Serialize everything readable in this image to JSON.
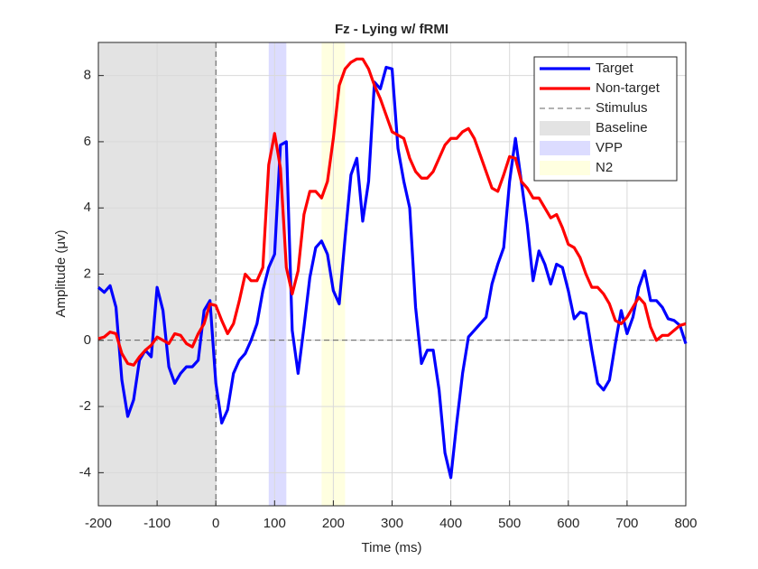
{
  "chart_data": {
    "type": "line",
    "title": "Fz - Lying w/ fRMI",
    "x_label": "Time (ms)",
    "y_label": "Amplitude (μv)",
    "xlim": [
      -200,
      800
    ],
    "ylim": [
      -5,
      9
    ],
    "xticks": [
      -200,
      -100,
      0,
      100,
      200,
      300,
      400,
      500,
      600,
      700,
      800
    ],
    "yticks": [
      -4,
      -2,
      0,
      2,
      4,
      6,
      8
    ],
    "grid": true,
    "legend": "upper right",
    "x": [
      -200,
      -190,
      -180,
      -170,
      -160,
      -150,
      -140,
      -130,
      -120,
      -110,
      -100,
      -90,
      -80,
      -70,
      -60,
      -50,
      -40,
      -30,
      -20,
      -10,
      0,
      10,
      20,
      30,
      40,
      50,
      60,
      70,
      80,
      90,
      100,
      110,
      120,
      130,
      140,
      150,
      160,
      170,
      180,
      190,
      200,
      210,
      220,
      230,
      240,
      250,
      260,
      270,
      280,
      290,
      300,
      310,
      320,
      330,
      340,
      350,
      360,
      370,
      380,
      390,
      400,
      410,
      420,
      430,
      440,
      450,
      460,
      470,
      480,
      490,
      500,
      510,
      520,
      530,
      540,
      550,
      560,
      570,
      580,
      590,
      600,
      610,
      620,
      630,
      640,
      650,
      660,
      670,
      680,
      690,
      700,
      710,
      720,
      730,
      740,
      750,
      760,
      770,
      780,
      790,
      800
    ],
    "series": [
      {
        "name": "Target",
        "color": "#0000ff",
        "values": [
          1.6,
          1.45,
          1.65,
          1.0,
          -1.2,
          -2.3,
          -1.8,
          -0.6,
          -0.3,
          -0.5,
          1.6,
          0.9,
          -0.8,
          -1.3,
          -1.0,
          -0.8,
          -0.8,
          -0.6,
          0.9,
          1.2,
          -1.3,
          -2.5,
          -2.1,
          -1.0,
          -0.6,
          -0.4,
          0.0,
          0.5,
          1.5,
          2.2,
          2.6,
          5.9,
          6.0,
          0.3,
          -1.0,
          0.4,
          1.9,
          2.8,
          3.0,
          2.6,
          1.5,
          1.1,
          3.1,
          5.0,
          5.5,
          3.6,
          4.8,
          7.8,
          7.6,
          8.25,
          8.2,
          5.8,
          4.8,
          4.0,
          1.0,
          -0.7,
          -0.3,
          -0.3,
          -1.5,
          -3.4,
          -4.15,
          -2.5,
          -1.0,
          0.1,
          0.3,
          0.5,
          0.7,
          1.7,
          2.3,
          2.8,
          4.8,
          6.1,
          4.8,
          3.5,
          1.8,
          2.7,
          2.3,
          1.7,
          2.3,
          2.2,
          1.5,
          0.65,
          0.85,
          0.8,
          -0.3,
          -1.3,
          -1.5,
          -1.2,
          -0.1,
          0.9,
          0.2,
          0.7,
          1.6,
          2.1,
          1.2,
          1.2,
          1.0,
          0.65,
          0.6,
          0.45,
          -0.1
        ]
      },
      {
        "name": "Non-target",
        "color": "#ff0000",
        "values": [
          0.05,
          0.1,
          0.25,
          0.2,
          -0.4,
          -0.7,
          -0.75,
          -0.5,
          -0.3,
          -0.15,
          0.1,
          0.0,
          -0.1,
          0.2,
          0.15,
          -0.1,
          -0.2,
          0.2,
          0.5,
          1.1,
          1.05,
          0.6,
          0.2,
          0.5,
          1.2,
          2.0,
          1.8,
          1.8,
          2.2,
          5.3,
          6.25,
          5.2,
          2.2,
          1.4,
          2.1,
          3.8,
          4.5,
          4.5,
          4.3,
          4.8,
          6.1,
          7.7,
          8.2,
          8.4,
          8.5,
          8.5,
          8.2,
          7.7,
          7.3,
          6.8,
          6.3,
          6.2,
          6.1,
          5.5,
          5.1,
          4.9,
          4.9,
          5.1,
          5.5,
          5.9,
          6.1,
          6.1,
          6.3,
          6.4,
          6.1,
          5.6,
          5.1,
          4.6,
          4.5,
          5.0,
          5.55,
          5.5,
          4.8,
          4.6,
          4.3,
          4.3,
          4.0,
          3.7,
          3.8,
          3.4,
          2.9,
          2.8,
          2.5,
          2.0,
          1.6,
          1.6,
          1.4,
          1.1,
          0.6,
          0.5,
          0.7,
          1.0,
          1.3,
          1.1,
          0.4,
          0.0,
          0.15,
          0.15,
          0.3,
          0.45,
          0.5
        ]
      }
    ],
    "stimulus": {
      "name": "Stimulus",
      "x": 0,
      "color": "#333333"
    },
    "reference_y": 0,
    "regions": [
      {
        "name": "Baseline",
        "start": -200,
        "end": 0,
        "color": "#e3e3e3"
      },
      {
        "name": "VPP",
        "start": 90,
        "end": 120,
        "color": "#dcdcff"
      },
      {
        "name": "N2",
        "start": 180,
        "end": 220,
        "color": "#ffffe0"
      }
    ]
  }
}
